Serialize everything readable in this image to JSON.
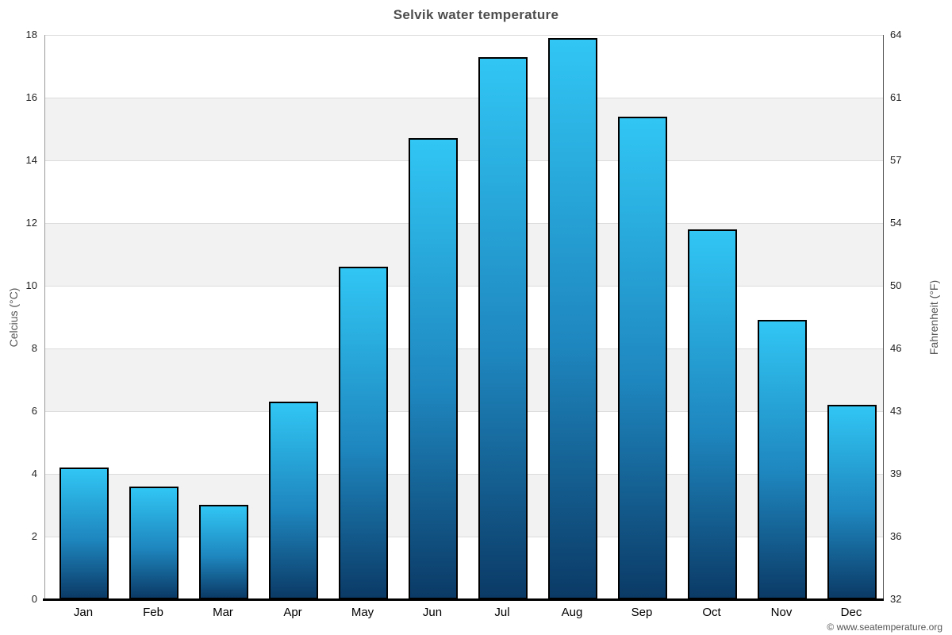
{
  "chart_data": {
    "type": "bar",
    "title": "Selvik water temperature",
    "categories": [
      "Jan",
      "Feb",
      "Mar",
      "Apr",
      "May",
      "Jun",
      "Jul",
      "Aug",
      "Sep",
      "Oct",
      "Nov",
      "Dec"
    ],
    "values": [
      4.2,
      3.6,
      3.0,
      6.3,
      10.6,
      14.7,
      17.3,
      17.9,
      15.4,
      11.8,
      8.9,
      6.2
    ],
    "series_name": "Water temperature",
    "ylabel_left": "Celcius (°C)",
    "ylabel_right": "Fahrenheit (°F)",
    "ylim": [
      0,
      18
    ],
    "ylim_right": [
      32,
      64
    ],
    "yticks": [
      {
        "c": 0,
        "f": 32
      },
      {
        "c": 2,
        "f": 36
      },
      {
        "c": 4,
        "f": 39
      },
      {
        "c": 6,
        "f": 43
      },
      {
        "c": 8,
        "f": 46
      },
      {
        "c": 10,
        "f": 50
      },
      {
        "c": 12,
        "f": 54
      },
      {
        "c": 14,
        "f": 57
      },
      {
        "c": 16,
        "f": 61
      },
      {
        "c": 18,
        "f": 64
      }
    ],
    "grid": true,
    "legend": "none",
    "band_color": "#f2f2f2",
    "bar_color_top": "#31C6F4",
    "bar_color_bottom": "#0B3A66",
    "bar_border_color": "#000000",
    "title_color": "#4d4d4d"
  },
  "footer": {
    "credit": "© www.seatemperature.org"
  }
}
